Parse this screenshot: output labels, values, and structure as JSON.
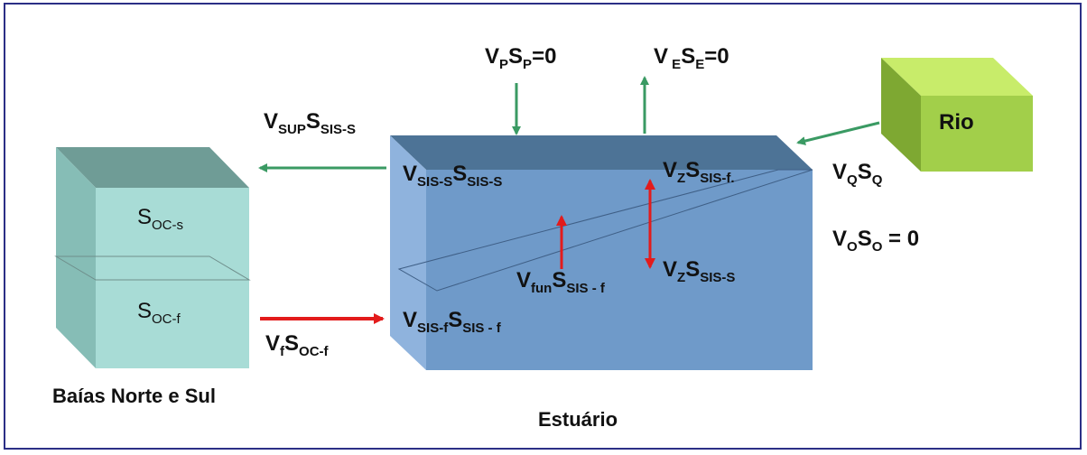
{
  "title_labels": {
    "bays": "Baías Norte e Sul",
    "estuary": "Estuário",
    "river": "Rio"
  },
  "ocean_box": {
    "upper": {
      "main": "S",
      "sub": "OC-s"
    },
    "lower": {
      "main": "S",
      "sub": "OC-f"
    }
  },
  "flux_labels": {
    "precip": [
      {
        "m": "V"
      },
      {
        "s": "P"
      },
      {
        "m": "S"
      },
      {
        "s": "P"
      },
      {
        "m": "=0"
      }
    ],
    "evap": [
      {
        "m": "V"
      },
      {
        "s": " E"
      },
      {
        "m": "S"
      },
      {
        "s": "E"
      },
      {
        "m": "=0"
      }
    ],
    "sup": [
      {
        "m": "V"
      },
      {
        "s": "SUP"
      },
      {
        "m": "S"
      },
      {
        "s": "SIS-S"
      }
    ],
    "sis_s": [
      {
        "m": "V"
      },
      {
        "s": "SIS-S"
      },
      {
        "m": "S"
      },
      {
        "s": "SIS-S"
      }
    ],
    "z_upper": [
      {
        "m": "V"
      },
      {
        "s": "Z"
      },
      {
        "m": "S"
      },
      {
        "s": "SIS-f."
      }
    ],
    "fun": [
      {
        "m": "V"
      },
      {
        "s": "fun"
      },
      {
        "m": "S"
      },
      {
        "s": "SIS - f"
      }
    ],
    "z_lower": [
      {
        "m": "V"
      },
      {
        "s": "Z"
      },
      {
        "m": "S"
      },
      {
        "s": "SIS-S"
      }
    ],
    "sis_f": [
      {
        "m": "V"
      },
      {
        "s": "SIS-f"
      },
      {
        "m": "S"
      },
      {
        "s": "SIS - f"
      }
    ],
    "f_oc": [
      {
        "m": "V"
      },
      {
        "s": "f"
      },
      {
        "m": "S"
      },
      {
        "s": "OC-f"
      }
    ],
    "river_q": [
      {
        "m": "V"
      },
      {
        "s": "Q"
      },
      {
        "m": "S"
      },
      {
        "s": "Q"
      }
    ],
    "ocean_o": [
      {
        "m": "V"
      },
      {
        "s": "O"
      },
      {
        "m": "S"
      },
      {
        "s": "O"
      },
      {
        "m": " = 0"
      }
    ]
  },
  "colors": {
    "frame": "#2b2f86",
    "estuary_front": "#6f9ac9",
    "estuary_top": "#4d7396",
    "estuary_side": "#8fb3dd",
    "ocean_front": "#a8dcd6",
    "ocean_top": "#6f9c96",
    "ocean_side": "#86bdb6",
    "river_front": "#a2cf4a",
    "river_top": "#c8ec6a",
    "river_side": "#7ea832",
    "green_arrow": "#3a9a63",
    "red_arrow": "#e31b1b"
  }
}
